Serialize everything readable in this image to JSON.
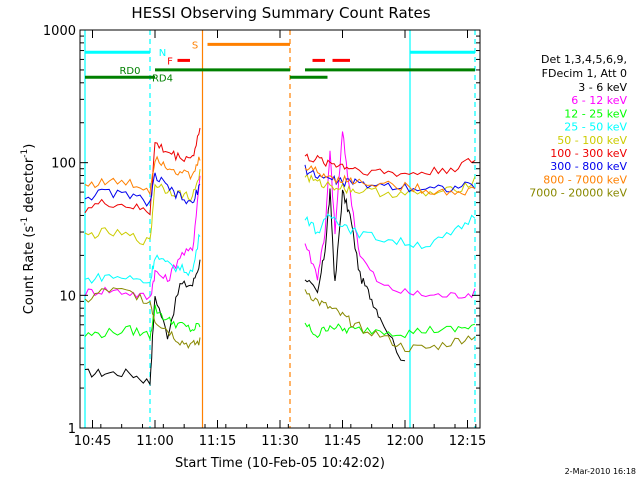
{
  "chart_data": {
    "type": "line",
    "title": "HESSI Observing Summary Count Rates",
    "xlabel": "Start Time (10-Feb-05 10:42:02)",
    "ylabel": "Count Rate (s",
    "ylabel_sup": "-1",
    "ylabel_tail": " detector",
    "ylabel_end": ")",
    "x_range_min": [
      10.7,
      12.3
    ],
    "y_range": [
      1,
      1000
    ],
    "y_scale": "log",
    "x_ticks": [
      {
        "v": 10.75,
        "label": "10:45"
      },
      {
        "v": 11.0,
        "label": "11:00"
      },
      {
        "v": 11.25,
        "label": "11:15"
      },
      {
        "v": 11.5,
        "label": "11:30"
      },
      {
        "v": 11.75,
        "label": "11:45"
      },
      {
        "v": 12.0,
        "label": "12:00"
      },
      {
        "v": 12.25,
        "label": "12:15"
      }
    ],
    "y_ticks": [
      {
        "v": 1,
        "label": "1"
      },
      {
        "v": 10,
        "label": "10"
      },
      {
        "v": 100,
        "label": "100"
      },
      {
        "v": 1000,
        "label": "1000"
      }
    ],
    "legend": {
      "placement": "right",
      "header1": "Det 1,3,4,5,6,9,",
      "header2": "FDecim 1, Att 0",
      "entries": [
        {
          "label": "3 - 6 keV",
          "color": "#000000"
        },
        {
          "label": "6 - 12 keV",
          "color": "#ff00ff"
        },
        {
          "label": "12 - 25 keV",
          "color": "#00ff00"
        },
        {
          "label": "25 - 50 keV",
          "color": "#00ffff"
        },
        {
          "label": "50 - 100 keV",
          "color": "#cccc00"
        },
        {
          "label": "100 - 300 keV",
          "color": "#ee0000"
        },
        {
          "label": "300 - 800 keV",
          "color": "#0000ee"
        },
        {
          "label": "800 - 7000 keV",
          "color": "#ff8000"
        },
        {
          "label": "7000 - 20000 keV",
          "color": "#888800"
        }
      ]
    },
    "flag_labels": [
      {
        "text": "N",
        "color": "#00ffff"
      },
      {
        "text": "S",
        "color": "#ff8000"
      },
      {
        "text": "F",
        "color": "#ff0000"
      },
      {
        "text": "RD0",
        "color": "#008000"
      },
      {
        "text": "RD4",
        "color": "#008000"
      }
    ],
    "flag_segments": [
      {
        "name": "N",
        "color": "#00ffff",
        "y": 680,
        "segments": [
          [
            10.72,
            10.98
          ],
          [
            12.02,
            12.28
          ]
        ]
      },
      {
        "name": "S",
        "color": "#ff8000",
        "y": 780,
        "segments": [
          [
            11.21,
            11.54
          ]
        ]
      },
      {
        "name": "F",
        "color": "#ff0000",
        "y": 590,
        "segments": [
          [
            11.09,
            11.14
          ],
          [
            11.63,
            11.68
          ],
          [
            11.71,
            11.78
          ]
        ]
      },
      {
        "name": "RD0",
        "color": "#008000",
        "y": 500,
        "segments": [
          [
            11.0,
            11.54
          ],
          [
            11.6,
            12.28
          ]
        ]
      },
      {
        "name": "RD4",
        "color": "#008000",
        "y": 440,
        "segments": [
          [
            10.72,
            11.0
          ],
          [
            11.54,
            11.69
          ]
        ]
      }
    ],
    "vertical_lines": [
      {
        "x": 10.72,
        "color": "#00ffff",
        "style": "solid"
      },
      {
        "x": 10.98,
        "color": "#00ffff",
        "style": "dashed"
      },
      {
        "x": 11.19,
        "color": "#ff8000",
        "style": "solid"
      },
      {
        "x": 11.54,
        "color": "#ff8000",
        "style": "dashed"
      },
      {
        "x": 12.02,
        "color": "#00ffff",
        "style": "solid"
      },
      {
        "x": 12.28,
        "color": "#00ffff",
        "style": "dashed"
      }
    ],
    "series": [
      {
        "name": "3 - 6 keV",
        "color": "#000000",
        "seg1": [
          [
            10.72,
            2.6
          ],
          [
            10.8,
            2.6
          ],
          [
            10.9,
            2.6
          ],
          [
            10.98,
            2.2
          ],
          [
            11.0,
            10
          ],
          [
            11.05,
            5
          ],
          [
            11.1,
            12
          ],
          [
            11.15,
            12
          ],
          [
            11.18,
            18
          ]
        ],
        "seg2": [
          [
            11.6,
            14
          ],
          [
            11.65,
            10
          ],
          [
            11.68,
            22
          ],
          [
            11.7,
            60
          ],
          [
            11.72,
            12
          ],
          [
            11.75,
            60
          ],
          [
            11.78,
            40
          ],
          [
            11.82,
            14
          ],
          [
            11.86,
            10
          ],
          [
            11.9,
            7
          ],
          [
            12.0,
            3
          ]
        ]
      },
      {
        "name": "6 - 12 keV",
        "color": "#ff00ff",
        "seg1": [
          [
            10.72,
            10.5
          ],
          [
            10.8,
            11
          ],
          [
            10.9,
            10.5
          ],
          [
            10.98,
            9.5
          ],
          [
            11.0,
            15
          ],
          [
            11.05,
            13
          ],
          [
            11.1,
            20
          ],
          [
            11.15,
            22
          ],
          [
            11.18,
            80
          ]
        ],
        "seg2": [
          [
            11.6,
            25
          ],
          [
            11.65,
            14
          ],
          [
            11.68,
            30
          ],
          [
            11.7,
            120
          ],
          [
            11.72,
            30
          ],
          [
            11.75,
            170
          ],
          [
            11.78,
            60
          ],
          [
            11.82,
            20
          ],
          [
            11.9,
            12
          ],
          [
            12.0,
            10.5
          ],
          [
            12.1,
            10
          ],
          [
            12.2,
            10
          ],
          [
            12.28,
            10.5
          ]
        ]
      },
      {
        "name": "12 - 25 keV",
        "color": "#00ff00",
        "seg1": [
          [
            10.72,
            5
          ],
          [
            10.8,
            5.2
          ],
          [
            10.9,
            5.5
          ],
          [
            10.98,
            5
          ],
          [
            11.0,
            8
          ],
          [
            11.05,
            6.5
          ],
          [
            11.1,
            6
          ],
          [
            11.15,
            5.5
          ],
          [
            11.18,
            6
          ]
        ],
        "seg2": [
          [
            11.6,
            6
          ],
          [
            11.65,
            5
          ],
          [
            11.7,
            6
          ],
          [
            11.75,
            5.5
          ],
          [
            11.8,
            5.5
          ],
          [
            11.9,
            5.5
          ],
          [
            12.0,
            5.2
          ],
          [
            12.1,
            5.5
          ],
          [
            12.2,
            5.5
          ],
          [
            12.28,
            6
          ]
        ]
      },
      {
        "name": "25 - 50 keV",
        "color": "#00ffff",
        "seg1": [
          [
            10.72,
            13
          ],
          [
            10.8,
            14
          ],
          [
            10.9,
            13.5
          ],
          [
            10.98,
            12.5
          ],
          [
            11.0,
            20
          ],
          [
            11.05,
            17
          ],
          [
            11.1,
            16
          ],
          [
            11.15,
            15
          ],
          [
            11.18,
            30
          ]
        ],
        "seg2": [
          [
            11.6,
            40
          ],
          [
            11.65,
            30
          ],
          [
            11.7,
            40
          ],
          [
            11.75,
            35
          ],
          [
            11.8,
            30
          ],
          [
            11.9,
            27
          ],
          [
            12.0,
            25
          ],
          [
            12.1,
            24
          ],
          [
            12.2,
            30
          ],
          [
            12.28,
            40
          ]
        ]
      },
      {
        "name": "50 - 100 keV",
        "color": "#cccc00",
        "seg1": [
          [
            10.72,
            28
          ],
          [
            10.8,
            30
          ],
          [
            10.9,
            28
          ],
          [
            10.98,
            25
          ],
          [
            11.0,
            70
          ],
          [
            11.05,
            62
          ],
          [
            11.1,
            58
          ],
          [
            11.15,
            55
          ],
          [
            11.18,
            85
          ]
        ],
        "seg2": [
          [
            11.6,
            80
          ],
          [
            11.65,
            70
          ],
          [
            11.7,
            68
          ],
          [
            11.75,
            65
          ],
          [
            11.8,
            62
          ],
          [
            11.9,
            60
          ],
          [
            12.0,
            58
          ],
          [
            12.1,
            58
          ],
          [
            12.2,
            62
          ],
          [
            12.28,
            75
          ]
        ]
      },
      {
        "name": "100 - 300 keV",
        "color": "#ee0000",
        "seg1": [
          [
            10.72,
            45
          ],
          [
            10.8,
            50
          ],
          [
            10.9,
            47
          ],
          [
            10.98,
            42
          ],
          [
            11.0,
            140
          ],
          [
            11.05,
            120
          ],
          [
            11.1,
            110
          ],
          [
            11.15,
            110
          ],
          [
            11.18,
            180
          ]
        ],
        "seg2": [
          [
            11.6,
            110
          ],
          [
            11.65,
            105
          ],
          [
            11.7,
            100
          ],
          [
            11.75,
            95
          ],
          [
            11.8,
            90
          ],
          [
            11.9,
            85
          ],
          [
            12.0,
            82
          ],
          [
            12.1,
            85
          ],
          [
            12.2,
            92
          ],
          [
            12.28,
            105
          ]
        ]
      },
      {
        "name": "300 - 800 keV",
        "color": "#0000ee",
        "seg1": [
          [
            10.72,
            55
          ],
          [
            10.8,
            60
          ],
          [
            10.9,
            57
          ],
          [
            10.98,
            50
          ],
          [
            11.0,
            80
          ],
          [
            11.05,
            65
          ],
          [
            11.1,
            55
          ],
          [
            11.15,
            48
          ],
          [
            11.18,
            70
          ]
        ],
        "seg2": [
          [
            11.6,
            90
          ],
          [
            11.65,
            80
          ],
          [
            11.7,
            75
          ],
          [
            11.75,
            72
          ],
          [
            11.8,
            70
          ],
          [
            11.9,
            68
          ],
          [
            12.0,
            66
          ],
          [
            12.1,
            64
          ],
          [
            12.2,
            65
          ],
          [
            12.28,
            68
          ]
        ]
      },
      {
        "name": "800 - 7000 keV",
        "color": "#ff8000",
        "seg1": [
          [
            10.72,
            68
          ],
          [
            10.8,
            72
          ],
          [
            10.9,
            70
          ],
          [
            10.98,
            62
          ],
          [
            11.0,
            110
          ],
          [
            11.05,
            95
          ],
          [
            11.1,
            85
          ],
          [
            11.15,
            78
          ],
          [
            11.18,
            110
          ]
        ],
        "seg2": [
          [
            11.6,
            95
          ],
          [
            11.65,
            85
          ],
          [
            11.7,
            78
          ],
          [
            11.75,
            75
          ],
          [
            11.8,
            72
          ],
          [
            11.9,
            70
          ],
          [
            12.0,
            66
          ],
          [
            12.1,
            62
          ],
          [
            12.2,
            60
          ],
          [
            12.28,
            62
          ]
        ]
      },
      {
        "name": "7000 - 20000 keV",
        "color": "#888800",
        "seg1": [
          [
            10.72,
            9
          ],
          [
            10.8,
            11
          ],
          [
            10.9,
            10.5
          ],
          [
            10.98,
            9
          ],
          [
            11.0,
            6.5
          ],
          [
            11.05,
            5.5
          ],
          [
            11.1,
            4.5
          ],
          [
            11.15,
            4.2
          ],
          [
            11.18,
            4.5
          ]
        ],
        "seg2": [
          [
            11.6,
            11
          ],
          [
            11.65,
            9
          ],
          [
            11.7,
            8
          ],
          [
            11.75,
            7
          ],
          [
            11.8,
            6
          ],
          [
            11.9,
            5
          ],
          [
            12.0,
            4
          ],
          [
            12.1,
            4
          ],
          [
            12.2,
            4.5
          ],
          [
            12.28,
            5
          ]
        ]
      }
    ],
    "footer_date": "2-Mar-2010 16:18"
  }
}
